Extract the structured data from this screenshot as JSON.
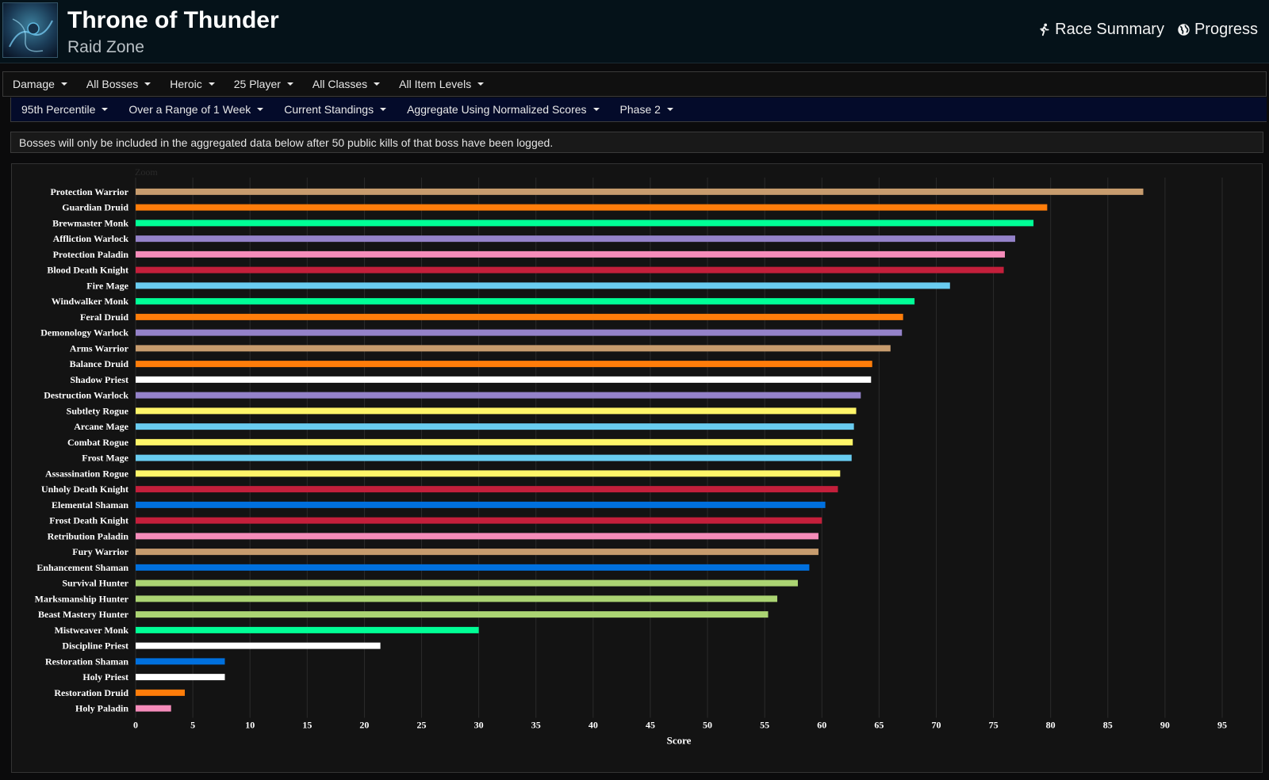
{
  "header": {
    "title": "Throne of Thunder",
    "subtitle": "Raid Zone",
    "links": {
      "race_summary": "Race Summary",
      "progress": "Progress"
    }
  },
  "filters_row1": [
    "Damage",
    "All Bosses",
    "Heroic",
    "25 Player",
    "All Classes",
    "All Item Levels"
  ],
  "filters_row2": [
    "95th Percentile",
    "Over a Range of 1 Week",
    "Current Standings",
    "Aggregate Using Normalized Scores",
    "Phase 2"
  ],
  "notice": "Bosses will only be included in the aggregated data below after 50 public kills of that boss have been logged.",
  "chart_data": {
    "type": "bar",
    "orientation": "horizontal",
    "zoom_label": "Zoom",
    "xlabel": "Score",
    "xlim": [
      0,
      95
    ],
    "xticks": [
      0,
      5,
      10,
      15,
      20,
      25,
      30,
      35,
      40,
      45,
      50,
      55,
      60,
      65,
      70,
      75,
      80,
      85,
      90,
      95
    ],
    "grid": true,
    "categories": [
      "Protection Warrior",
      "Guardian Druid",
      "Brewmaster Monk",
      "Affliction Warlock",
      "Protection Paladin",
      "Blood Death Knight",
      "Fire Mage",
      "Windwalker Monk",
      "Feral Druid",
      "Demonology Warlock",
      "Arms Warrior",
      "Balance Druid",
      "Shadow Priest",
      "Destruction Warlock",
      "Subtlety Rogue",
      "Arcane Mage",
      "Combat Rogue",
      "Frost Mage",
      "Assassination Rogue",
      "Unholy Death Knight",
      "Elemental Shaman",
      "Frost Death Knight",
      "Retribution Paladin",
      "Fury Warrior",
      "Enhancement Shaman",
      "Survival Hunter",
      "Marksmanship Hunter",
      "Beast Mastery Hunter",
      "Mistweaver Monk",
      "Discipline Priest",
      "Restoration Shaman",
      "Holy Priest",
      "Restoration Druid",
      "Holy Paladin"
    ],
    "values": [
      88.1,
      79.7,
      78.5,
      76.9,
      76.0,
      75.9,
      71.2,
      68.1,
      67.1,
      67.0,
      66.0,
      64.4,
      64.3,
      63.4,
      63.0,
      62.8,
      62.7,
      62.6,
      61.6,
      61.4,
      60.3,
      60.0,
      59.7,
      59.7,
      58.9,
      57.9,
      56.1,
      55.3,
      30.0,
      21.4,
      7.8,
      7.8,
      4.3,
      3.1
    ],
    "colors": [
      "#c79c6e",
      "#ff7d0a",
      "#00ff96",
      "#9482c9",
      "#f58cba",
      "#c41f3b",
      "#69ccf0",
      "#00ff96",
      "#ff7d0a",
      "#9482c9",
      "#c79c6e",
      "#ff7d0a",
      "#ffffff",
      "#9482c9",
      "#fff569",
      "#69ccf0",
      "#fff569",
      "#69ccf0",
      "#fff569",
      "#c41f3b",
      "#0070de",
      "#c41f3b",
      "#f58cba",
      "#c79c6e",
      "#0070de",
      "#abd473",
      "#abd473",
      "#abd473",
      "#00ff96",
      "#ffffff",
      "#0070de",
      "#ffffff",
      "#ff7d0a",
      "#f58cba"
    ]
  }
}
